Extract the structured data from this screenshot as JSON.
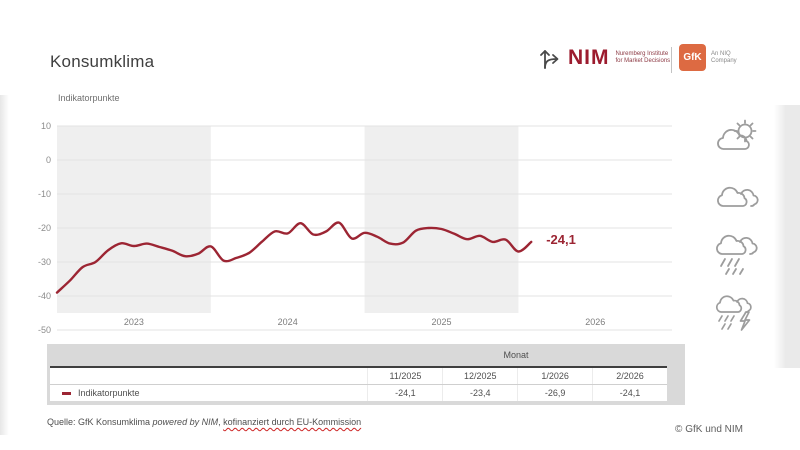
{
  "header": {
    "title": "Konsumklima"
  },
  "logos": {
    "nim": {
      "name": "NIM",
      "subtitle_line1": "Nuremberg Institute",
      "subtitle_line2": "for Market Decisions"
    },
    "gfk": {
      "name": "GfK",
      "subtitle_line1": "An NIQ",
      "subtitle_line2": "Company"
    }
  },
  "chart_data": {
    "type": "line",
    "title": "Konsumklima",
    "ylabel": "Indikatorpunkte",
    "series_name": "Indikatorpunkte",
    "x": [
      "1/2023",
      "2/2023",
      "3/2023",
      "4/2023",
      "5/2023",
      "6/2023",
      "7/2023",
      "8/2023",
      "9/2023",
      "10/2023",
      "11/2023",
      "12/2023",
      "1/2024",
      "2/2024",
      "3/2024",
      "4/2024",
      "5/2024",
      "6/2024",
      "7/2024",
      "8/2024",
      "9/2024",
      "10/2024",
      "11/2024",
      "12/2024",
      "1/2025",
      "2/2025",
      "3/2025",
      "4/2025",
      "5/2025",
      "6/2025",
      "7/2025",
      "8/2025",
      "9/2025",
      "10/2025",
      "11/2025",
      "12/2025",
      "1/2026",
      "2/2026"
    ],
    "values": [
      -39.0,
      -35.5,
      -31.5,
      -30.0,
      -26.5,
      -24.5,
      -25.3,
      -24.6,
      -25.6,
      -26.7,
      -28.3,
      -27.6,
      -25.4,
      -29.6,
      -28.8,
      -27.3,
      -24.0,
      -21.0,
      -21.6,
      -18.6,
      -21.9,
      -21.0,
      -18.4,
      -23.1,
      -21.4,
      -22.6,
      -24.6,
      -24.3,
      -20.8,
      -20.0,
      -20.3,
      -21.7,
      -23.3,
      -22.3,
      -24.1,
      -23.4,
      -26.9,
      -24.1
    ],
    "ylim": [
      -50,
      10
    ],
    "yticks": [
      10,
      0,
      -10,
      -20,
      -30,
      -40,
      -50
    ],
    "year_labels": [
      "2023",
      "2024",
      "2025",
      "2026"
    ],
    "shaded_year_indices": [
      0,
      2
    ],
    "grid": true,
    "legend_position": "table-below",
    "line_color": "#9c2533",
    "band_color": "#efefef",
    "grid_color": "#e3e3e3",
    "end_label": "-24,1"
  },
  "table": {
    "group_header": "Monat",
    "columns": [
      "11/2025",
      "12/2025",
      "1/2026",
      "2/2026"
    ],
    "rows": [
      {
        "label": "Indikatorpunkte",
        "values": [
          "-24,1",
          "-23,4",
          "-26,9",
          "-24,1"
        ]
      }
    ]
  },
  "footer": {
    "source_prefix": "Quelle: GfK Konsumklima ",
    "source_italic": "powered by NIM",
    "source_separator": ", ",
    "source_underlined": "kofinanziert durch EU-Kommission",
    "copyright": "© GfK und NIM"
  },
  "icons": {
    "weather": [
      "sun-behind-cloud",
      "clouds",
      "rain-cloud",
      "thunderstorm-cloud"
    ]
  }
}
